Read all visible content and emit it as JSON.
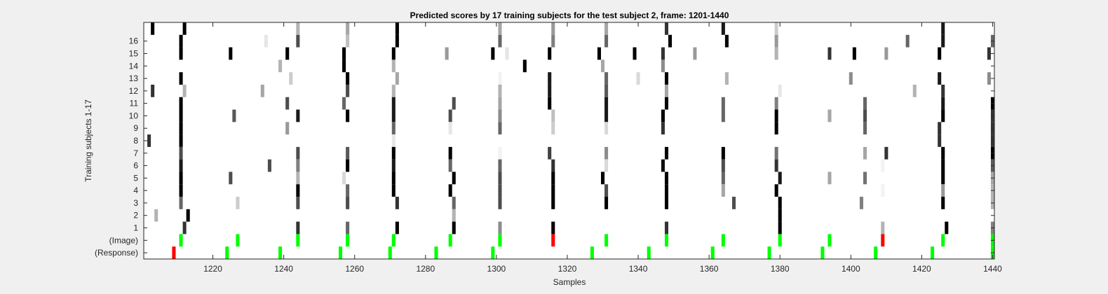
{
  "chart_data": {
    "type": "heatmap",
    "title": "Predicted scores by 17 training subjects for the test subject 2, frame: 1201-1440",
    "xlabel": "Samples",
    "ylabel": "Training subjects 1-17",
    "xlim": [
      1201,
      1440
    ],
    "x_ticks": [
      1220,
      1240,
      1260,
      1280,
      1300,
      1320,
      1340,
      1360,
      1380,
      1400,
      1420,
      1440
    ],
    "y_tick_labels": [
      "1",
      "2",
      "3",
      "4",
      "5",
      "6",
      "7",
      "8",
      "9",
      "10",
      "11",
      "12",
      "13",
      "14",
      "15",
      "16",
      "(Image)",
      "(Response)"
    ],
    "grid": false,
    "legend": "none",
    "colors": {
      "grayscale": "white(0) to black(1)",
      "green": "#00ff00",
      "red": "#ff0000",
      "background": "#ffffff",
      "figure_bg": "#f0f0f0"
    },
    "marker_rows": {
      "image": {
        "green": [
          1211,
          1227,
          1244,
          1258,
          1271,
          1287,
          1301,
          1331,
          1348,
          1364,
          1380,
          1394,
          1426,
          1440
        ],
        "red": [
          1316,
          1409
        ]
      },
      "response": {
        "green": [
          1224,
          1239,
          1256,
          1270,
          1283,
          1299,
          1327,
          1343,
          1361,
          1377,
          1392,
          1407,
          1423,
          1440
        ],
        "red": [
          1209
        ]
      }
    },
    "subject_scores": [
      {
        "subject": 17,
        "points": [
          [
            1203,
            1.0
          ],
          [
            1212,
            1.0
          ],
          [
            1244,
            0.3
          ],
          [
            1258,
            0.35
          ],
          [
            1272,
            1.0
          ],
          [
            1301,
            0.35
          ],
          [
            1316,
            0.4
          ],
          [
            1331,
            0.35
          ],
          [
            1348,
            0.8
          ],
          [
            1364,
            0.9
          ],
          [
            1379,
            0.2
          ],
          [
            1426,
            0.9
          ]
        ]
      },
      {
        "subject": 16,
        "points": [
          [
            1211,
            1.0
          ],
          [
            1235,
            0.1
          ],
          [
            1244,
            0.7
          ],
          [
            1258,
            0.25
          ],
          [
            1272,
            1.0
          ],
          [
            1301,
            0.6
          ],
          [
            1316,
            0.5
          ],
          [
            1331,
            0.6
          ],
          [
            1349,
            1.0
          ],
          [
            1365,
            1.0
          ],
          [
            1379,
            0.4
          ],
          [
            1416,
            0.6
          ],
          [
            1426,
            0.9
          ],
          [
            1440,
            0.6
          ]
        ]
      },
      {
        "subject": 15,
        "points": [
          [
            1211,
            1.0
          ],
          [
            1225,
            1.0
          ],
          [
            1241,
            1.0
          ],
          [
            1257,
            1.0
          ],
          [
            1271,
            1.0
          ],
          [
            1286,
            0.4
          ],
          [
            1299,
            1.0
          ],
          [
            1303,
            0.1
          ],
          [
            1315,
            1.0
          ],
          [
            1329,
            1.0
          ],
          [
            1339,
            1.0
          ],
          [
            1347,
            0.8
          ],
          [
            1356,
            0.4
          ],
          [
            1379,
            0.3
          ],
          [
            1394,
            0.8
          ],
          [
            1401,
            1.0
          ],
          [
            1410,
            0.4
          ],
          [
            1425,
            1.0
          ],
          [
            1439,
            0.8
          ]
        ]
      },
      {
        "subject": 14,
        "points": [
          [
            1239,
            0.3
          ],
          [
            1257,
            1.0
          ],
          [
            1271,
            0.3
          ],
          [
            1308,
            1.0
          ],
          [
            1330,
            0.35
          ],
          [
            1347,
            0.45
          ]
        ]
      },
      {
        "subject": 13,
        "points": [
          [
            1211,
            1.0
          ],
          [
            1242,
            0.2
          ],
          [
            1258,
            1.0
          ],
          [
            1272,
            0.35
          ],
          [
            1301,
            0.05
          ],
          [
            1315,
            0.9
          ],
          [
            1331,
            0.6
          ],
          [
            1340,
            0.15
          ],
          [
            1348,
            1.0
          ],
          [
            1365,
            0.3
          ],
          [
            1400,
            0.45
          ],
          [
            1425,
            0.9
          ],
          [
            1439,
            0.45
          ]
        ]
      },
      {
        "subject": 12,
        "points": [
          [
            1203,
            0.8
          ],
          [
            1212,
            0.3
          ],
          [
            1234,
            0.35
          ],
          [
            1258,
            0.7
          ],
          [
            1271,
            0.3
          ],
          [
            1301,
            0.3
          ],
          [
            1315,
            0.9
          ],
          [
            1331,
            0.65
          ],
          [
            1348,
            0.35
          ],
          [
            1380,
            0.1
          ],
          [
            1418,
            0.3
          ],
          [
            1426,
            0.8
          ]
        ]
      },
      {
        "subject": 11,
        "points": [
          [
            1211,
            1.0
          ],
          [
            1241,
            0.7
          ],
          [
            1257,
            0.6
          ],
          [
            1271,
            0.9
          ],
          [
            1288,
            0.7
          ],
          [
            1301,
            0.35
          ],
          [
            1315,
            1.0
          ],
          [
            1331,
            0.9
          ],
          [
            1348,
            1.0
          ],
          [
            1364,
            0.6
          ],
          [
            1379,
            0.5
          ],
          [
            1404,
            0.6
          ],
          [
            1426,
            0.9
          ],
          [
            1440,
            1.0
          ]
        ]
      },
      {
        "subject": 10,
        "points": [
          [
            1211,
            1.0
          ],
          [
            1226,
            0.65
          ],
          [
            1244,
            0.9
          ],
          [
            1258,
            1.0
          ],
          [
            1271,
            0.9
          ],
          [
            1287,
            0.7
          ],
          [
            1301,
            0.45
          ],
          [
            1316,
            0.25
          ],
          [
            1331,
            0.9
          ],
          [
            1347,
            1.0
          ],
          [
            1364,
            0.6
          ],
          [
            1379,
            1.0
          ],
          [
            1394,
            0.35
          ],
          [
            1404,
            0.7
          ],
          [
            1426,
            1.0
          ],
          [
            1440,
            0.8
          ]
        ]
      },
      {
        "subject": 9,
        "points": [
          [
            1211,
            1.0
          ],
          [
            1241,
            0.4
          ],
          [
            1271,
            0.6
          ],
          [
            1287,
            0.1
          ],
          [
            1301,
            0.6
          ],
          [
            1316,
            0.2
          ],
          [
            1331,
            0.15
          ],
          [
            1347,
            0.8
          ],
          [
            1379,
            1.0
          ],
          [
            1404,
            0.6
          ],
          [
            1425,
            0.8
          ],
          [
            1440,
            0.8
          ]
        ]
      },
      {
        "subject": 8,
        "points": [
          [
            1202,
            0.8
          ],
          [
            1211,
            1.0
          ],
          [
            1271,
            0.1
          ],
          [
            1425,
            0.8
          ],
          [
            1440,
            0.8
          ]
        ]
      },
      {
        "subject": 7,
        "points": [
          [
            1211,
            0.7
          ],
          [
            1244,
            0.7
          ],
          [
            1258,
            0.65
          ],
          [
            1271,
            1.0
          ],
          [
            1287,
            1.0
          ],
          [
            1301,
            0.05
          ],
          [
            1315,
            0.75
          ],
          [
            1331,
            0.45
          ],
          [
            1348,
            1.0
          ],
          [
            1364,
            1.0
          ],
          [
            1379,
            0.55
          ],
          [
            1404,
            0.35
          ],
          [
            1410,
            0.8
          ],
          [
            1426,
            1.0
          ],
          [
            1440,
            1.0
          ]
        ]
      },
      {
        "subject": 6,
        "points": [
          [
            1211,
            0.9
          ],
          [
            1236,
            0.7
          ],
          [
            1244,
            0.5
          ],
          [
            1258,
            1.0
          ],
          [
            1271,
            0.9
          ],
          [
            1287,
            0.6
          ],
          [
            1301,
            0.6
          ],
          [
            1316,
            0.8
          ],
          [
            1331,
            0.15
          ],
          [
            1347,
            0.95
          ],
          [
            1364,
            0.7
          ],
          [
            1379,
            0.8
          ],
          [
            1409,
            0.05
          ],
          [
            1426,
            1.0
          ],
          [
            1440,
            0.65
          ]
        ]
      },
      {
        "subject": 5,
        "points": [
          [
            1211,
            1.0
          ],
          [
            1225,
            0.7
          ],
          [
            1244,
            0.3
          ],
          [
            1257,
            0.15
          ],
          [
            1271,
            1.0
          ],
          [
            1288,
            1.0
          ],
          [
            1301,
            0.7
          ],
          [
            1316,
            1.0
          ],
          [
            1330,
            1.0
          ],
          [
            1348,
            1.0
          ],
          [
            1364,
            0.6
          ],
          [
            1380,
            0.9
          ],
          [
            1394,
            0.35
          ],
          [
            1404,
            0.55
          ],
          [
            1426,
            1.0
          ],
          [
            1440,
            0.35
          ]
        ]
      },
      {
        "subject": 4,
        "points": [
          [
            1211,
            1.0
          ],
          [
            1244,
            1.0
          ],
          [
            1258,
            0.6
          ],
          [
            1271,
            1.0
          ],
          [
            1287,
            1.0
          ],
          [
            1301,
            0.7
          ],
          [
            1316,
            1.0
          ],
          [
            1331,
            0.7
          ],
          [
            1348,
            1.0
          ],
          [
            1364,
            0.35
          ],
          [
            1379,
            1.0
          ],
          [
            1409,
            0.05
          ],
          [
            1426,
            0.4
          ],
          [
            1440,
            0.3
          ]
        ]
      },
      {
        "subject": 3,
        "points": [
          [
            1211,
            0.6
          ],
          [
            1227,
            0.2
          ],
          [
            1244,
            0.7
          ],
          [
            1258,
            0.7
          ],
          [
            1272,
            0.8
          ],
          [
            1288,
            0.6
          ],
          [
            1301,
            0.7
          ],
          [
            1316,
            1.0
          ],
          [
            1331,
            1.0
          ],
          [
            1348,
            1.0
          ],
          [
            1367,
            0.7
          ],
          [
            1380,
            1.0
          ],
          [
            1403,
            0.5
          ],
          [
            1426,
            1.0
          ],
          [
            1440,
            0.3
          ]
        ]
      },
      {
        "subject": 2,
        "points": [
          [
            1204,
            0.3
          ],
          [
            1213,
            1.0
          ],
          [
            1288,
            0.3
          ],
          [
            1380,
            1.0
          ]
        ]
      },
      {
        "subject": 1,
        "points": [
          [
            1212,
            0.8
          ],
          [
            1244,
            0.8
          ],
          [
            1258,
            0.6
          ],
          [
            1272,
            1.0
          ],
          [
            1288,
            1.0
          ],
          [
            1301,
            0.45
          ],
          [
            1316,
            1.0
          ],
          [
            1348,
            0.8
          ],
          [
            1380,
            1.0
          ],
          [
            1409,
            0.3
          ],
          [
            1427,
            1.0
          ],
          [
            1440,
            0.5
          ]
        ]
      }
    ]
  }
}
